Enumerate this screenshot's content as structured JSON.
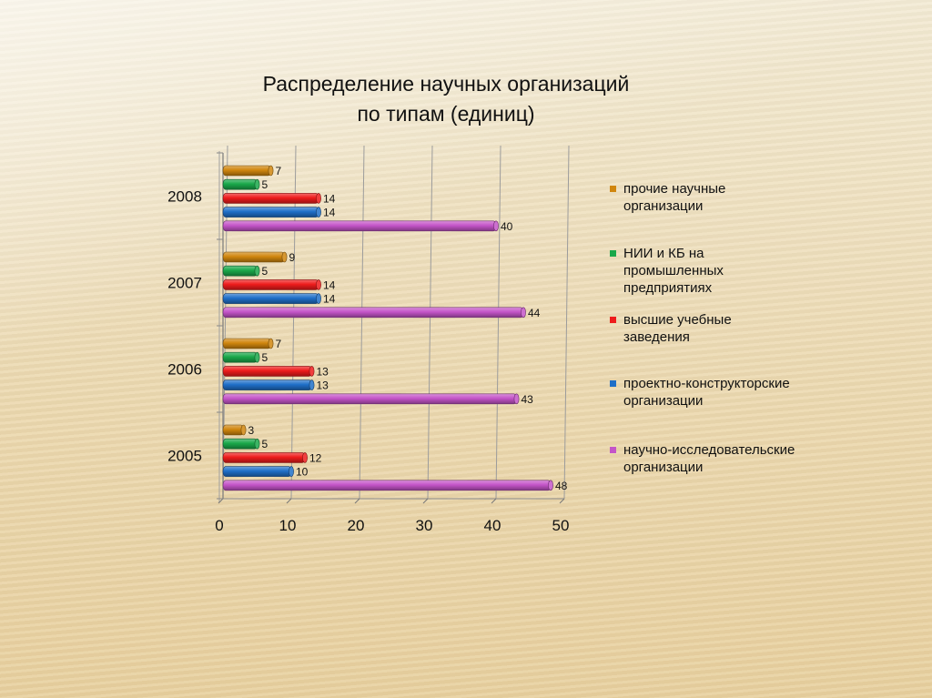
{
  "chart_data": {
    "type": "bar",
    "orientation": "horizontal",
    "title": [
      "Распределение  научных организаций",
      "по типам (единиц)"
    ],
    "categories": [
      "2008",
      "2007",
      "2006",
      "2005"
    ],
    "series": [
      {
        "name": "прочие научные организации",
        "color": "#d0860e",
        "values": [
          7,
          9,
          7,
          3
        ]
      },
      {
        "name": "НИИ и КБ на промышленных предприятиях",
        "color": "#1aa84a",
        "values": [
          5,
          5,
          5,
          5
        ]
      },
      {
        "name": "высшие учебные заведения",
        "color": "#ee1c1c",
        "values": [
          14,
          14,
          13,
          12
        ]
      },
      {
        "name": "проектно-конструкторские организации",
        "color": "#1f6fc8",
        "values": [
          14,
          14,
          13,
          10
        ]
      },
      {
        "name": "научно-исследовательские организации",
        "color": "#c455c8",
        "values": [
          40,
          44,
          43,
          48
        ]
      }
    ],
    "xlim": [
      0,
      50
    ],
    "xticks": [
      "0",
      "10",
      "20",
      "30",
      "40",
      "50"
    ],
    "grid": true,
    "legend": "right"
  }
}
